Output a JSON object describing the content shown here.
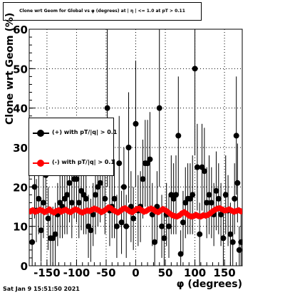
{
  "title": "Clone wrt Geom for Global vs φ (degrees) at | η | <= 1.0 at pT > 0.11",
  "timestamp": "Sat Jan  9 15:51:50 2021",
  "chart_data": {
    "type": "scatter",
    "xlabel": "φ (degrees)",
    "ylabel": "Clone wrt Geom (%)",
    "xlim": [
      -180,
      180
    ],
    "ylim": [
      0,
      60
    ],
    "x_ticks": [
      -150,
      -100,
      -50,
      0,
      50,
      100,
      150
    ],
    "y_ticks": [
      0,
      10,
      20,
      30,
      40,
      50,
      60
    ],
    "grid": true,
    "legend_position": "left",
    "series": [
      {
        "name": "(+) with pT/|q| > 0.1",
        "color": "#000000",
        "points": [
          [
            -175,
            6,
            8
          ],
          [
            -171,
            20,
            8
          ],
          [
            -168,
            14,
            8
          ],
          [
            -164,
            17,
            9
          ],
          [
            -160,
            9,
            8
          ],
          [
            -156,
            16,
            9
          ],
          [
            -152,
            23,
            10
          ],
          [
            -148,
            12,
            8
          ],
          [
            -144,
            7,
            8
          ],
          [
            -140,
            7,
            8
          ],
          [
            -136,
            8,
            8
          ],
          [
            -132,
            13,
            8
          ],
          [
            -128,
            16,
            9
          ],
          [
            -124,
            15,
            8
          ],
          [
            -120,
            17,
            9
          ],
          [
            -116,
            18,
            10
          ],
          [
            -112,
            21,
            10
          ],
          [
            -108,
            16,
            9
          ],
          [
            -104,
            22,
            10
          ],
          [
            -100,
            22,
            11
          ],
          [
            -96,
            16,
            9
          ],
          [
            -92,
            19,
            10
          ],
          [
            -88,
            18,
            10
          ],
          [
            -84,
            17,
            9
          ],
          [
            -80,
            10,
            8
          ],
          [
            -76,
            9,
            8
          ],
          [
            -72,
            13,
            8
          ],
          [
            -68,
            18,
            10
          ],
          [
            -64,
            20,
            10
          ],
          [
            -60,
            21,
            10
          ],
          [
            -56,
            25,
            11
          ],
          [
            -52,
            17,
            9
          ],
          [
            -48,
            40,
            20
          ],
          [
            -44,
            14,
            9
          ],
          [
            -40,
            15,
            8
          ],
          [
            -36,
            17,
            10
          ],
          [
            -32,
            10,
            8
          ],
          [
            -28,
            26,
            12
          ],
          [
            -24,
            11,
            8
          ],
          [
            -20,
            20,
            10
          ],
          [
            -16,
            10,
            8
          ],
          [
            -12,
            30,
            14
          ],
          [
            -8,
            15,
            9
          ],
          [
            -4,
            12,
            8
          ],
          [
            0,
            36,
            16
          ],
          [
            4,
            14,
            9
          ],
          [
            8,
            15,
            9
          ],
          [
            12,
            22,
            10
          ],
          [
            16,
            26,
            11
          ],
          [
            20,
            26,
            11
          ],
          [
            24,
            27,
            12
          ],
          [
            28,
            13,
            8
          ],
          [
            32,
            6,
            8
          ],
          [
            36,
            15,
            9
          ],
          [
            40,
            40,
            20
          ],
          [
            44,
            10,
            8
          ],
          [
            48,
            7,
            8
          ],
          [
            52,
            13,
            8
          ],
          [
            56,
            10,
            8
          ],
          [
            60,
            18,
            10
          ],
          [
            64,
            17,
            9
          ],
          [
            68,
            18,
            10
          ],
          [
            72,
            33,
            15
          ],
          [
            76,
            3,
            6
          ],
          [
            80,
            11,
            8
          ],
          [
            84,
            16,
            9
          ],
          [
            88,
            17,
            9
          ],
          [
            92,
            17,
            9
          ],
          [
            96,
            18,
            10
          ],
          [
            100,
            50,
            22
          ],
          [
            104,
            25,
            11
          ],
          [
            108,
            8,
            8
          ],
          [
            112,
            25,
            11
          ],
          [
            116,
            24,
            11
          ],
          [
            120,
            16,
            9
          ],
          [
            124,
            18,
            10
          ],
          [
            128,
            16,
            9
          ],
          [
            132,
            13,
            8
          ],
          [
            136,
            19,
            10
          ],
          [
            140,
            17,
            9
          ],
          [
            144,
            13,
            8
          ],
          [
            148,
            7,
            8
          ],
          [
            152,
            18,
            10
          ],
          [
            156,
            14,
            9
          ],
          [
            160,
            8,
            8
          ],
          [
            164,
            6,
            8
          ],
          [
            167,
            17,
            9
          ],
          [
            170,
            33,
            15
          ],
          [
            172,
            21,
            10
          ],
          [
            175,
            4,
            6
          ],
          [
            178,
            6,
            8
          ]
        ]
      },
      {
        "name": "(-) with pT/|q| > 0.1",
        "color": "#ff0000",
        "points": [
          [
            -178,
            13.8,
            0.8
          ],
          [
            -174,
            14.1,
            0.8
          ],
          [
            -170,
            13.7,
            0.8
          ],
          [
            -166,
            13.9,
            0.8
          ],
          [
            -162,
            14.2,
            0.8
          ],
          [
            -158,
            14.0,
            0.8
          ],
          [
            -154,
            13.6,
            0.8
          ],
          [
            -150,
            13.9,
            0.8
          ],
          [
            -146,
            14.3,
            0.8
          ],
          [
            -142,
            13.8,
            0.8
          ],
          [
            -138,
            13.5,
            0.8
          ],
          [
            -134,
            13.9,
            0.8
          ],
          [
            -130,
            14.1,
            0.8
          ],
          [
            -126,
            13.7,
            0.8
          ],
          [
            -122,
            14.0,
            0.8
          ],
          [
            -118,
            14.2,
            0.8
          ],
          [
            -114,
            13.8,
            0.8
          ],
          [
            -110,
            13.6,
            0.8
          ],
          [
            -106,
            14.0,
            0.8
          ],
          [
            -102,
            14.3,
            0.8
          ],
          [
            -98,
            14.1,
            0.8
          ],
          [
            -94,
            13.7,
            0.8
          ],
          [
            -90,
            13.5,
            0.8
          ],
          [
            -86,
            13.8,
            0.8
          ],
          [
            -82,
            14.0,
            0.8
          ],
          [
            -78,
            13.9,
            0.8
          ],
          [
            -74,
            14.2,
            0.8
          ],
          [
            -70,
            14.5,
            0.8
          ],
          [
            -66,
            14.3,
            0.8
          ],
          [
            -62,
            14.0,
            0.8
          ],
          [
            -58,
            13.6,
            0.8
          ],
          [
            -54,
            13.9,
            0.8
          ],
          [
            -50,
            14.3,
            0.8
          ],
          [
            -46,
            14.8,
            0.8
          ],
          [
            -42,
            14.6,
            0.8
          ],
          [
            -38,
            14.1,
            0.8
          ],
          [
            -34,
            13.8,
            0.8
          ],
          [
            -30,
            13.5,
            0.8
          ],
          [
            -26,
            13.9,
            0.8
          ],
          [
            -22,
            14.4,
            0.8
          ],
          [
            -18,
            14.6,
            0.8
          ],
          [
            -14,
            14.2,
            0.8
          ],
          [
            -10,
            13.8,
            0.8
          ],
          [
            -6,
            13.6,
            0.8
          ],
          [
            -2,
            14.0,
            0.8
          ],
          [
            2,
            14.4,
            0.8
          ],
          [
            6,
            14.5,
            0.8
          ],
          [
            10,
            14.1,
            0.8
          ],
          [
            14,
            13.7,
            0.8
          ],
          [
            18,
            13.9,
            0.8
          ],
          [
            22,
            14.3,
            0.8
          ],
          [
            26,
            14.5,
            0.8
          ],
          [
            30,
            14.2,
            0.8
          ],
          [
            34,
            13.8,
            0.8
          ],
          [
            38,
            13.6,
            0.8
          ],
          [
            42,
            14.0,
            0.8
          ],
          [
            46,
            14.4,
            0.8
          ],
          [
            50,
            14.1,
            0.8
          ],
          [
            54,
            13.7,
            0.8
          ],
          [
            58,
            13.2,
            0.8
          ],
          [
            62,
            12.8,
            0.8
          ],
          [
            66,
            12.6,
            0.8
          ],
          [
            70,
            12.5,
            0.8
          ],
          [
            74,
            12.8,
            0.8
          ],
          [
            78,
            13.3,
            0.8
          ],
          [
            82,
            13.6,
            0.8
          ],
          [
            86,
            13.2,
            0.8
          ],
          [
            90,
            12.7,
            0.8
          ],
          [
            94,
            12.5,
            0.8
          ],
          [
            98,
            12.6,
            0.8
          ],
          [
            102,
            12.9,
            0.8
          ],
          [
            106,
            12.6,
            0.8
          ],
          [
            110,
            12.5,
            0.8
          ],
          [
            114,
            12.8,
            0.8
          ],
          [
            118,
            12.7,
            0.8
          ],
          [
            122,
            12.9,
            0.8
          ],
          [
            126,
            13.3,
            0.8
          ],
          [
            130,
            13.8,
            0.8
          ],
          [
            134,
            14.2,
            0.8
          ],
          [
            138,
            14.5,
            0.8
          ],
          [
            142,
            14.6,
            0.8
          ],
          [
            146,
            14.3,
            0.8
          ],
          [
            150,
            14.0,
            0.8
          ],
          [
            154,
            14.1,
            0.8
          ],
          [
            158,
            14.3,
            0.8
          ],
          [
            162,
            14.0,
            0.8
          ],
          [
            166,
            13.7,
            0.8
          ],
          [
            170,
            13.9,
            0.8
          ],
          [
            174,
            14.1,
            0.8
          ],
          [
            178,
            13.8,
            0.8
          ]
        ]
      }
    ]
  }
}
